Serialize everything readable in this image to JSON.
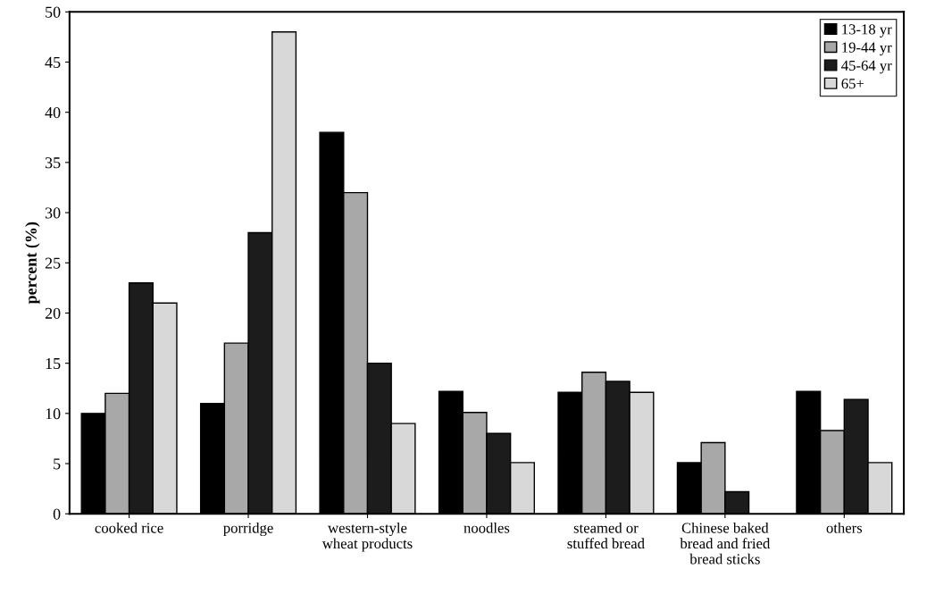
{
  "chart_data": {
    "type": "bar",
    "ylabel": "percent (%)",
    "categories": [
      "cooked rice",
      "porridge",
      "western-style\nwheat products",
      "noodles",
      "steamed or\nstuffed bread",
      "Chinese baked\nbread and fried\nbread sticks",
      "others"
    ],
    "series": [
      {
        "name": "13-18 yr",
        "color": "#000000",
        "values": [
          10,
          11,
          38,
          12.2,
          12.1,
          5.1,
          12.2
        ]
      },
      {
        "name": "19-44 yr",
        "color": "#a8a8a8",
        "values": [
          12,
          17,
          32,
          10.1,
          14.1,
          7.1,
          8.3
        ]
      },
      {
        "name": "45-64 yr",
        "color": "#1c1c1c",
        "values": [
          23,
          28,
          15,
          8.0,
          13.2,
          2.2,
          11.4
        ]
      },
      {
        "name": "65+",
        "color": "#d8d8d8",
        "values": [
          21,
          48,
          9,
          5.1,
          12.1,
          null,
          5.1
        ]
      }
    ],
    "ylim": [
      0,
      50
    ],
    "yticks": [
      0,
      5,
      10,
      15,
      20,
      25,
      30,
      35,
      40,
      45,
      50
    ],
    "legend": "top right",
    "grid": false
  }
}
